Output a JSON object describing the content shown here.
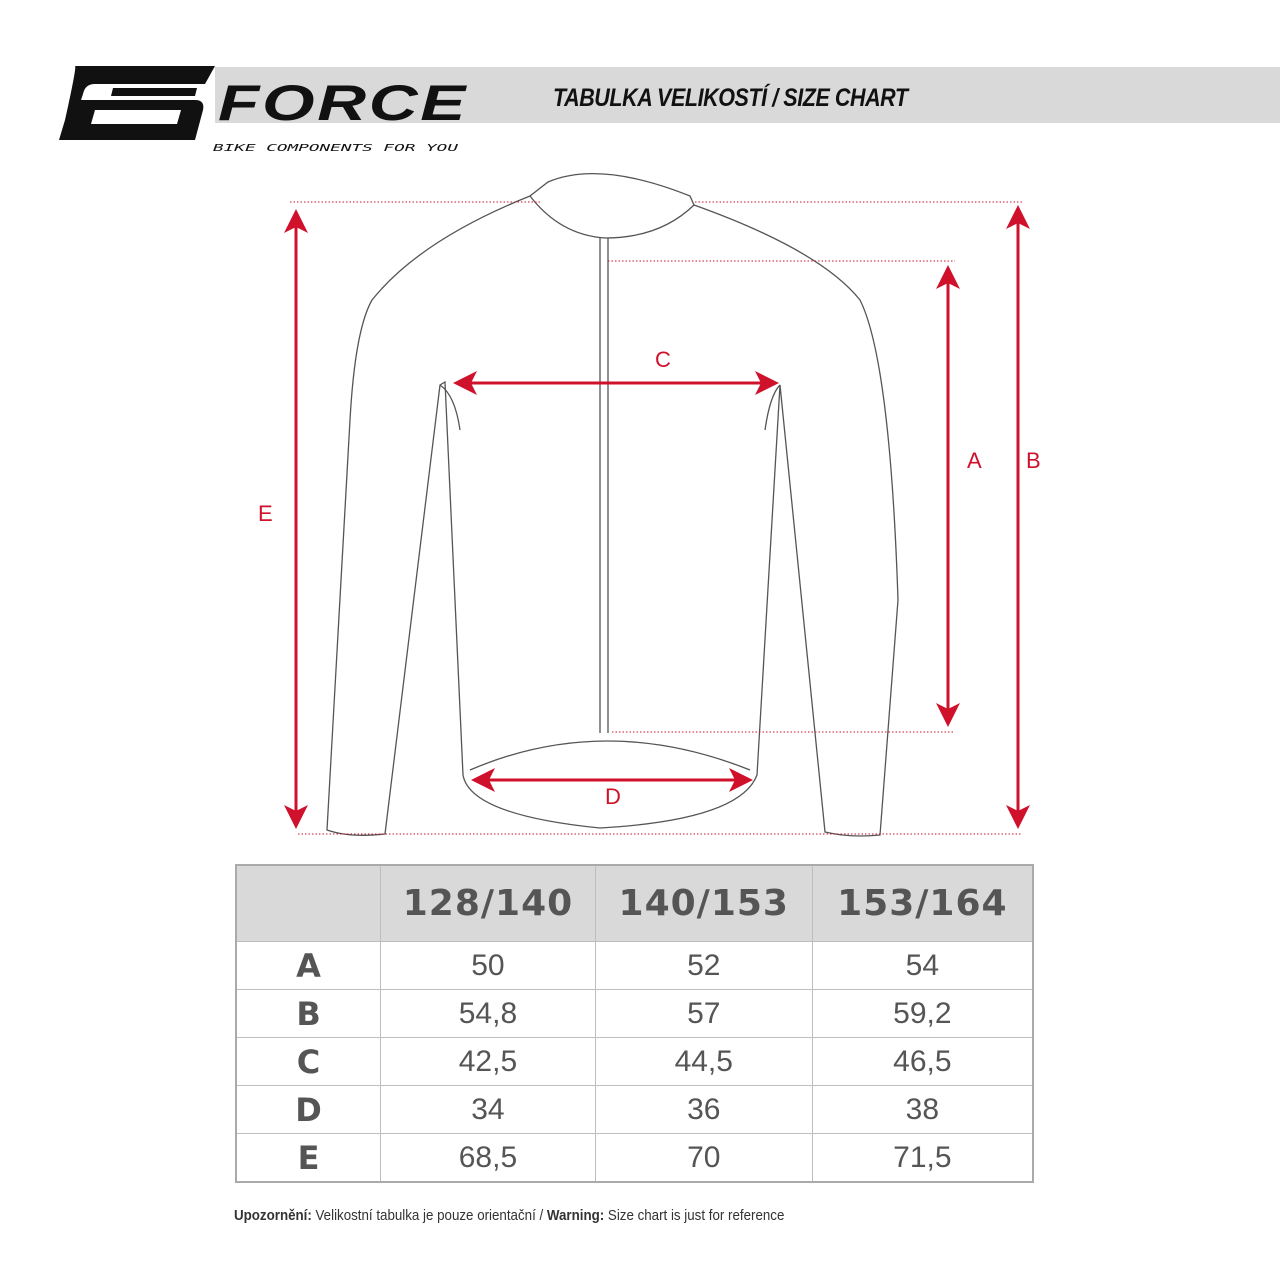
{
  "brand": {
    "name": "FORCE",
    "tagline": "BIKE COMPONENTS FOR YOU"
  },
  "header": {
    "title": "TABULKA VELIKOSTÍ / SIZE CHART"
  },
  "colors": {
    "accent": "#d0112b",
    "banner": "#d9d9d9",
    "text": "#555555"
  },
  "diagram": {
    "labels": {
      "a": "A",
      "b": "B",
      "c": "C",
      "d": "D",
      "e": "E"
    }
  },
  "table": {
    "columns": [
      "",
      "128/140",
      "140/153",
      "153/164"
    ],
    "rows": [
      {
        "label": "A",
        "values": [
          "50",
          "52",
          "54"
        ]
      },
      {
        "label": "B",
        "values": [
          "54,8",
          "57",
          "59,2"
        ]
      },
      {
        "label": "C",
        "values": [
          "42,5",
          "44,5",
          "46,5"
        ]
      },
      {
        "label": "D",
        "values": [
          "34",
          "36",
          "38"
        ]
      },
      {
        "label": "E",
        "values": [
          "68,5",
          "70",
          "71,5"
        ]
      }
    ]
  },
  "footer": {
    "warning_cz_label": "Upozornění:",
    "warning_cz_text": " Velikostní tabulka je pouze orientační / ",
    "warning_en_label": "Warning:",
    "warning_en_text": " Size chart is just for reference"
  }
}
